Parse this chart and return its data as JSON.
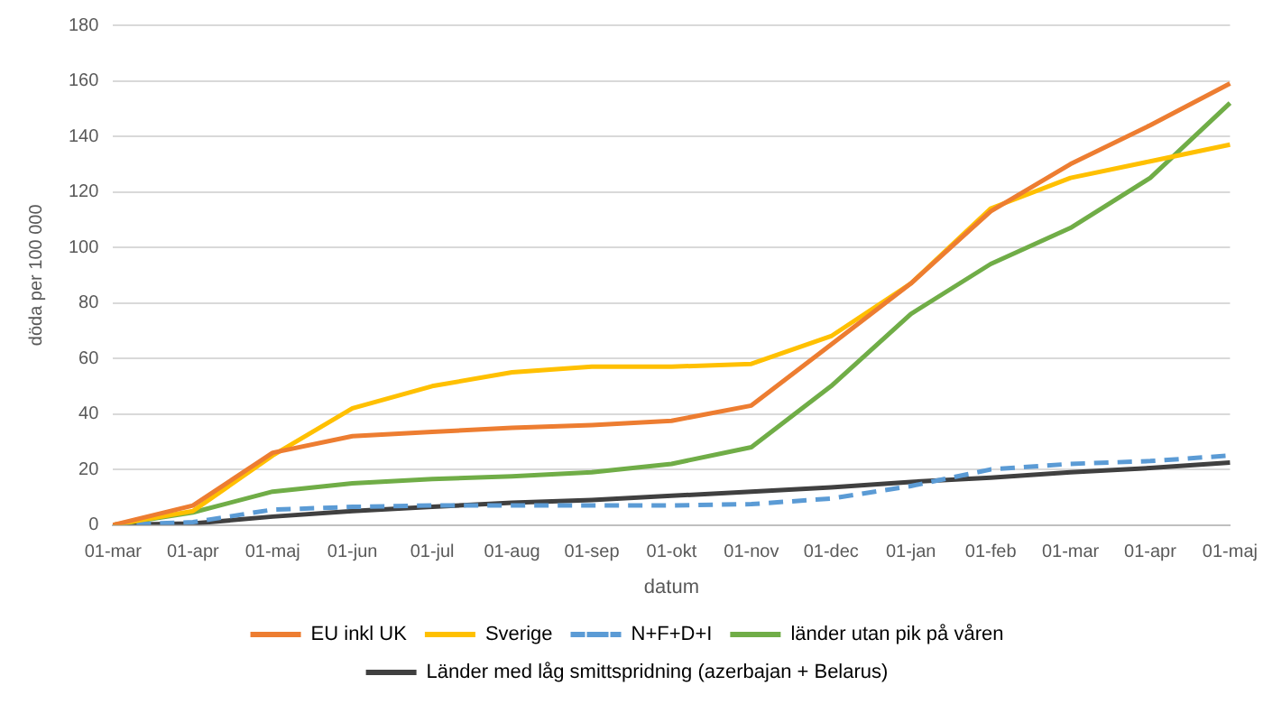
{
  "chart_data": {
    "type": "line",
    "xlabel": "datum",
    "ylabel": "döda per 100 000",
    "categories": [
      "01-mar",
      "01-apr",
      "01-maj",
      "01-jun",
      "01-jul",
      "01-aug",
      "01-sep",
      "01-okt",
      "01-nov",
      "01-dec",
      "01-jan",
      "01-feb",
      "01-mar",
      "01-apr",
      "01-maj"
    ],
    "series": [
      {
        "name": "EU inkl UK",
        "color": "#ed7d31",
        "values": [
          0,
          7,
          26,
          32,
          33.5,
          35,
          36,
          37.5,
          43,
          65,
          87,
          113,
          130,
          144,
          159
        ]
      },
      {
        "name": "Sverige",
        "color": "#ffc000",
        "values": [
          0,
          5,
          25,
          42,
          50,
          55,
          57,
          57,
          58,
          68,
          87,
          114,
          125,
          131,
          137
        ]
      },
      {
        "name": "N+F+D+I",
        "color": "#5b9bd5",
        "line_style": "dashed",
        "values": [
          0,
          1,
          5.5,
          6.5,
          7,
          7,
          7,
          7,
          7.5,
          9.5,
          14,
          20,
          22,
          23,
          25
        ]
      },
      {
        "name": "länder utan pik på våren",
        "color": "#70ad47",
        "values": [
          0,
          4.5,
          12,
          15,
          16.5,
          17.5,
          19,
          22,
          28,
          50,
          76,
          94,
          107,
          125,
          152
        ]
      },
      {
        "name": "Länder med låg smittspridning (azerbajan + Belarus)",
        "color": "#404040",
        "values": [
          0,
          0.5,
          3,
          5,
          6.5,
          8,
          9,
          10.5,
          12,
          13.5,
          15.5,
          17,
          19,
          20.5,
          22.5
        ]
      }
    ],
    "ylim": [
      0,
      180
    ],
    "yticks": [
      0,
      20,
      40,
      60,
      80,
      100,
      120,
      140,
      160,
      180
    ],
    "grid": "y",
    "legend": "bottom",
    "marker": "none"
  }
}
